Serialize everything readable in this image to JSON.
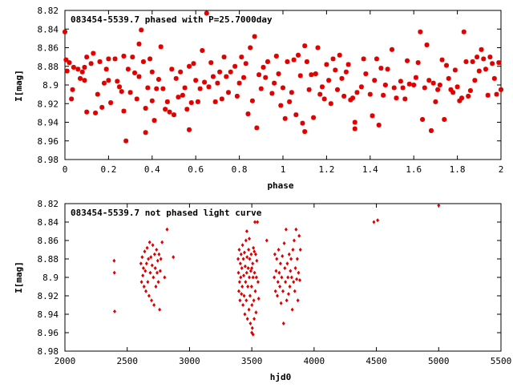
{
  "chart_data": [
    {
      "type": "scatter",
      "title": "083454-5539.7 phased with P=25.7000day",
      "xlabel": "phase",
      "ylabel": "I[mag]",
      "xlim": [
        0,
        2
      ],
      "ylim": [
        8.82,
        8.98
      ],
      "y_inverted": true,
      "grid": false,
      "marker": "star",
      "color": "#e00000",
      "x_ticks": [
        "0",
        "0.2",
        "0.4",
        "0.6",
        "0.8",
        "1",
        "1.2",
        "1.4",
        "1.6",
        "1.8",
        "2"
      ],
      "y_ticks": [
        "8.82",
        "8.84",
        "8.86",
        "8.88",
        "8.9",
        "8.92",
        "8.94",
        "8.96",
        "8.98"
      ],
      "points": [
        [
          0.0,
          8.843
        ],
        [
          0.005,
          8.873
        ],
        [
          0.01,
          8.885
        ],
        [
          0.02,
          8.876
        ],
        [
          0.03,
          8.915
        ],
        [
          0.035,
          8.905
        ],
        [
          0.04,
          8.881
        ],
        [
          0.06,
          8.883
        ],
        [
          0.07,
          8.893
        ],
        [
          0.08,
          8.886
        ],
        [
          0.09,
          8.881
        ],
        [
          0.09,
          8.895
        ],
        [
          0.1,
          8.929
        ],
        [
          0.1,
          8.87
        ],
        [
          0.12,
          8.877
        ],
        [
          0.13,
          8.866
        ],
        [
          0.14,
          8.93
        ],
        [
          0.15,
          8.91
        ],
        [
          0.16,
          8.875
        ],
        [
          0.17,
          8.924
        ],
        [
          0.18,
          8.898
        ],
        [
          0.19,
          8.883
        ],
        [
          0.2,
          8.872
        ],
        [
          0.2,
          8.895
        ],
        [
          0.21,
          8.919
        ],
        [
          0.23,
          8.872
        ],
        [
          0.24,
          8.896
        ],
        [
          0.25,
          8.902
        ],
        [
          0.26,
          8.907
        ],
        [
          0.27,
          8.869
        ],
        [
          0.27,
          8.928
        ],
        [
          0.28,
          8.96
        ],
        [
          0.29,
          8.883
        ],
        [
          0.3,
          8.908
        ],
        [
          0.31,
          8.87
        ],
        [
          0.32,
          8.887
        ],
        [
          0.33,
          8.915
        ],
        [
          0.34,
          8.856
        ],
        [
          0.34,
          8.891
        ],
        [
          0.35,
          8.841
        ],
        [
          0.36,
          8.875
        ],
        [
          0.37,
          8.925
        ],
        [
          0.37,
          8.951
        ],
        [
          0.38,
          8.903
        ],
        [
          0.39,
          8.872
        ],
        [
          0.4,
          8.886
        ],
        [
          0.4,
          8.917
        ],
        [
          0.41,
          8.938
        ],
        [
          0.42,
          8.904
        ],
        [
          0.43,
          8.894
        ],
        [
          0.44,
          8.859
        ],
        [
          0.45,
          8.904
        ],
        [
          0.46,
          8.926
        ],
        [
          0.47,
          8.918
        ],
        [
          0.48,
          8.929
        ],
        [
          0.49,
          8.883
        ],
        [
          0.5,
          8.932
        ],
        [
          0.51,
          8.893
        ],
        [
          0.52,
          8.913
        ],
        [
          0.53,
          8.886
        ],
        [
          0.54,
          8.911
        ],
        [
          0.55,
          8.903
        ],
        [
          0.56,
          8.926
        ],
        [
          0.57,
          8.88
        ],
        [
          0.57,
          8.948
        ],
        [
          0.58,
          8.919
        ],
        [
          0.59,
          8.877
        ],
        [
          0.6,
          8.895
        ],
        [
          0.61,
          8.918
        ],
        [
          0.62,
          8.904
        ],
        [
          0.63,
          8.863
        ],
        [
          0.64,
          8.897
        ],
        [
          0.65,
          8.823
        ],
        [
          0.66,
          8.902
        ],
        [
          0.67,
          8.876
        ],
        [
          0.68,
          8.891
        ],
        [
          0.69,
          8.918
        ],
        [
          0.7,
          8.898
        ],
        [
          0.71,
          8.886
        ],
        [
          0.72,
          8.915
        ],
        [
          0.73,
          8.87
        ],
        [
          0.74,
          8.891
        ],
        [
          0.75,
          8.908
        ],
        [
          0.76,
          8.886
        ],
        [
          0.78,
          8.88
        ],
        [
          0.79,
          8.912
        ],
        [
          0.8,
          8.898
        ],
        [
          0.81,
          8.87
        ],
        [
          0.82,
          8.892
        ],
        [
          0.83,
          8.877
        ],
        [
          0.84,
          8.931
        ],
        [
          0.85,
          8.86
        ],
        [
          0.86,
          8.917
        ],
        [
          0.87,
          8.848
        ],
        [
          0.88,
          8.946
        ],
        [
          0.89,
          8.889
        ],
        [
          0.9,
          8.904
        ],
        [
          0.91,
          8.881
        ],
        [
          0.92,
          8.892
        ],
        [
          0.93,
          8.875
        ],
        [
          0.95,
          8.909
        ],
        [
          0.96,
          8.898
        ],
        [
          0.97,
          8.869
        ],
        [
          0.98,
          8.888
        ],
        [
          0.99,
          8.922
        ],
        [
          1.0,
          8.903
        ],
        [
          1.01,
          8.936
        ],
        [
          1.02,
          8.875
        ],
        [
          1.03,
          8.918
        ],
        [
          1.04,
          8.908
        ],
        [
          1.05,
          8.873
        ],
        [
          1.06,
          8.932
        ],
        [
          1.07,
          8.868
        ],
        [
          1.08,
          8.89
        ],
        [
          1.09,
          8.941
        ],
        [
          1.1,
          8.858
        ],
        [
          1.1,
          8.95
        ],
        [
          1.11,
          8.875
        ],
        [
          1.12,
          8.905
        ],
        [
          1.13,
          8.889
        ],
        [
          1.14,
          8.935
        ],
        [
          1.15,
          8.888
        ],
        [
          1.16,
          8.86
        ],
        [
          1.17,
          8.91
        ],
        [
          1.18,
          8.902
        ],
        [
          1.19,
          8.915
        ],
        [
          1.2,
          8.878
        ],
        [
          1.21,
          8.895
        ],
        [
          1.22,
          8.92
        ],
        [
          1.23,
          8.872
        ],
        [
          1.24,
          8.884
        ],
        [
          1.25,
          8.905
        ],
        [
          1.26,
          8.868
        ],
        [
          1.27,
          8.893
        ],
        [
          1.28,
          8.912
        ],
        [
          1.29,
          8.886
        ],
        [
          1.3,
          8.878
        ],
        [
          1.31,
          8.916
        ],
        [
          1.32,
          8.914
        ],
        [
          1.33,
          8.94
        ],
        [
          1.33,
          8.947
        ],
        [
          1.34,
          8.908
        ],
        [
          1.36,
          8.902
        ],
        [
          1.37,
          8.872
        ],
        [
          1.38,
          8.888
        ],
        [
          1.4,
          8.91
        ],
        [
          1.41,
          8.933
        ],
        [
          1.42,
          8.895
        ],
        [
          1.43,
          8.872
        ],
        [
          1.44,
          8.943
        ],
        [
          1.45,
          8.882
        ],
        [
          1.46,
          8.911
        ],
        [
          1.47,
          8.9
        ],
        [
          1.48,
          8.883
        ],
        [
          1.5,
          8.862
        ],
        [
          1.51,
          8.903
        ],
        [
          1.52,
          8.914
        ],
        [
          1.54,
          8.896
        ],
        [
          1.55,
          8.903
        ],
        [
          1.56,
          8.915
        ],
        [
          1.57,
          8.874
        ],
        [
          1.58,
          8.899
        ],
        [
          1.6,
          8.9
        ],
        [
          1.61,
          8.892
        ],
        [
          1.62,
          8.876
        ],
        [
          1.63,
          8.843
        ],
        [
          1.64,
          8.937
        ],
        [
          1.65,
          8.903
        ],
        [
          1.66,
          8.857
        ],
        [
          1.67,
          8.895
        ],
        [
          1.68,
          8.949
        ],
        [
          1.69,
          8.898
        ],
        [
          1.7,
          8.918
        ],
        [
          1.71,
          8.905
        ],
        [
          1.72,
          8.9
        ],
        [
          1.73,
          8.873
        ],
        [
          1.74,
          8.937
        ],
        [
          1.75,
          8.879
        ],
        [
          1.76,
          8.893
        ],
        [
          1.77,
          8.905
        ],
        [
          1.78,
          8.908
        ],
        [
          1.79,
          8.884
        ],
        [
          1.8,
          8.902
        ],
        [
          1.81,
          8.917
        ],
        [
          1.82,
          8.914
        ],
        [
          1.83,
          8.843
        ],
        [
          1.84,
          8.875
        ],
        [
          1.85,
          8.912
        ],
        [
          1.86,
          8.906
        ],
        [
          1.87,
          8.875
        ],
        [
          1.88,
          8.895
        ],
        [
          1.89,
          8.87
        ],
        [
          1.9,
          8.885
        ],
        [
          1.91,
          8.862
        ],
        [
          1.92,
          8.872
        ],
        [
          1.93,
          8.883
        ],
        [
          1.94,
          8.911
        ],
        [
          1.95,
          8.87
        ],
        [
          1.96,
          8.877
        ],
        [
          1.97,
          8.893
        ],
        [
          1.98,
          8.91
        ],
        [
          1.99,
          8.876
        ],
        [
          2.0,
          8.905
        ]
      ]
    },
    {
      "type": "scatter",
      "title": "083454-5539.7 not phased light curve",
      "xlabel": "hjd0",
      "ylabel": "I[mag]",
      "xlim": [
        2000,
        5500
      ],
      "ylim": [
        8.82,
        8.98
      ],
      "y_inverted": true,
      "grid": false,
      "marker": "diamond",
      "color": "#e00000",
      "x_ticks": [
        "2000",
        "2500",
        "3000",
        "3500",
        "4000",
        "4500",
        "5000",
        "5500"
      ],
      "y_ticks": [
        "8.82",
        "8.84",
        "8.86",
        "8.88",
        "8.9",
        "8.92",
        "8.94",
        "8.96",
        "8.98"
      ],
      "points": [
        [
          2395,
          8.882
        ],
        [
          2397,
          8.895
        ],
        [
          2399,
          8.937
        ],
        [
          2610,
          8.885
        ],
        [
          2615,
          8.905
        ],
        [
          2620,
          8.878
        ],
        [
          2625,
          8.898
        ],
        [
          2630,
          8.89
        ],
        [
          2635,
          8.91
        ],
        [
          2640,
          8.872
        ],
        [
          2645,
          8.893
        ],
        [
          2650,
          8.915
        ],
        [
          2655,
          8.885
        ],
        [
          2660,
          8.868
        ],
        [
          2665,
          8.905
        ],
        [
          2670,
          8.88
        ],
        [
          2675,
          8.92
        ],
        [
          2680,
          8.862
        ],
        [
          2685,
          8.895
        ],
        [
          2690,
          8.878
        ],
        [
          2695,
          8.925
        ],
        [
          2700,
          8.887
        ],
        [
          2705,
          8.865
        ],
        [
          2710,
          8.9
        ],
        [
          2715,
          8.93
        ],
        [
          2720,
          8.875
        ],
        [
          2725,
          8.89
        ],
        [
          2730,
          8.91
        ],
        [
          2735,
          8.87
        ],
        [
          2740,
          8.895
        ],
        [
          2745,
          8.882
        ],
        [
          2750,
          8.905
        ],
        [
          2755,
          8.875
        ],
        [
          2760,
          8.935
        ],
        [
          2765,
          8.893
        ],
        [
          2770,
          8.88
        ],
        [
          2780,
          8.862
        ],
        [
          2800,
          8.9
        ],
        [
          2820,
          8.848
        ],
        [
          2870,
          8.878
        ],
        [
          3390,
          8.88
        ],
        [
          3393,
          8.895
        ],
        [
          3396,
          8.915
        ],
        [
          3399,
          8.87
        ],
        [
          3402,
          8.905
        ],
        [
          3405,
          8.925
        ],
        [
          3408,
          8.885
        ],
        [
          3411,
          8.9
        ],
        [
          3414,
          8.875
        ],
        [
          3417,
          8.918
        ],
        [
          3420,
          8.89
        ],
        [
          3423,
          8.91
        ],
        [
          3426,
          8.865
        ],
        [
          3429,
          8.93
        ],
        [
          3432,
          8.88
        ],
        [
          3435,
          8.898
        ],
        [
          3438,
          8.92
        ],
        [
          3441,
          8.873
        ],
        [
          3444,
          8.94
        ],
        [
          3447,
          8.888
        ],
        [
          3450,
          8.905
        ],
        [
          3453,
          8.86
        ],
        [
          3456,
          8.925
        ],
        [
          3459,
          8.895
        ],
        [
          3462,
          8.878
        ],
        [
          3465,
          8.945
        ],
        [
          3468,
          8.91
        ],
        [
          3471,
          8.89
        ],
        [
          3474,
          8.87
        ],
        [
          3477,
          8.935
        ],
        [
          3480,
          8.9
        ],
        [
          3483,
          8.88
        ],
        [
          3486,
          8.92
        ],
        [
          3489,
          8.95
        ],
        [
          3492,
          8.893
        ],
        [
          3495,
          8.875
        ],
        [
          3498,
          8.91
        ],
        [
          3501,
          8.93
        ],
        [
          3504,
          8.955
        ],
        [
          3507,
          8.885
        ],
        [
          3510,
          8.9
        ],
        [
          3513,
          8.868
        ],
        [
          3516,
          8.925
        ],
        [
          3519,
          8.945
        ],
        [
          3522,
          8.895
        ],
        [
          3525,
          8.84
        ],
        [
          3528,
          8.915
        ],
        [
          3531,
          8.875
        ],
        [
          3534,
          8.938
        ],
        [
          3537,
          8.9
        ],
        [
          3540,
          8.882
        ],
        [
          3545,
          8.84
        ],
        [
          3550,
          8.905
        ],
        [
          3555,
          8.923
        ],
        [
          3500,
          8.96
        ],
        [
          3510,
          8.962
        ],
        [
          3460,
          8.85
        ],
        [
          3480,
          8.858
        ],
        [
          3520,
          8.872
        ],
        [
          3500,
          8.89
        ],
        [
          3620,
          8.86
        ],
        [
          3680,
          8.9
        ],
        [
          3685,
          8.875
        ],
        [
          3690,
          8.915
        ],
        [
          3695,
          8.893
        ],
        [
          3700,
          8.88
        ],
        [
          3705,
          8.92
        ],
        [
          3710,
          8.905
        ],
        [
          3715,
          8.87
        ],
        [
          3720,
          8.895
        ],
        [
          3725,
          8.91
        ],
        [
          3730,
          8.885
        ],
        [
          3735,
          8.928
        ],
        [
          3740,
          8.9
        ],
        [
          3745,
          8.877
        ],
        [
          3750,
          8.915
        ],
        [
          3755,
          8.95
        ],
        [
          3760,
          8.863
        ],
        [
          3765,
          8.89
        ],
        [
          3770,
          8.905
        ],
        [
          3775,
          8.848
        ],
        [
          3780,
          8.925
        ],
        [
          3785,
          8.885
        ],
        [
          3790,
          8.9
        ],
        [
          3795,
          8.918
        ],
        [
          3800,
          8.875
        ],
        [
          3805,
          8.91
        ],
        [
          3810,
          8.893
        ],
        [
          3815,
          8.88
        ],
        [
          3820,
          8.9
        ],
        [
          3825,
          8.935
        ],
        [
          3830,
          8.87
        ],
        [
          3835,
          8.905
        ],
        [
          3840,
          8.86
        ],
        [
          3845,
          8.915
        ],
        [
          3850,
          8.89
        ],
        [
          3855,
          8.848
        ],
        [
          3860,
          8.902
        ],
        [
          3865,
          8.88
        ],
        [
          3870,
          8.925
        ],
        [
          3875,
          8.895
        ],
        [
          3880,
          8.855
        ],
        [
          3885,
          8.903
        ],
        [
          3890,
          8.87
        ],
        [
          4480,
          8.84
        ],
        [
          4510,
          8.838
        ],
        [
          5000,
          8.822
        ]
      ]
    }
  ]
}
